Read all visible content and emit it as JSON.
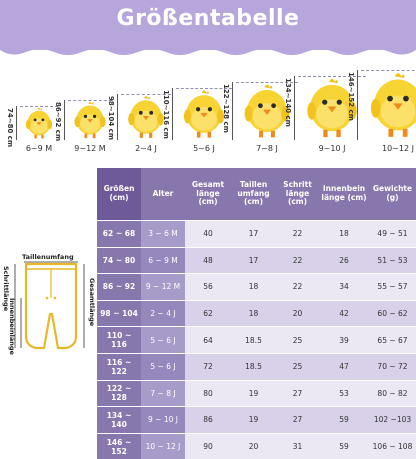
{
  "title": "Größentabelle",
  "colors": {
    "banner": "#b7a6dc",
    "header": "#8877ad",
    "chick": "#f7d334",
    "rowLight": "#ebe7f3",
    "rowDark": "#d8d1e9"
  },
  "chicks": [
    {
      "height": "74~80 cm",
      "age": "6~9 M"
    },
    {
      "height": "86~92 cm",
      "age": "9~12 M"
    },
    {
      "height": "98~104 cm",
      "age": "2~4 J"
    },
    {
      "height": "110~116 cm",
      "age": "5~6 J"
    },
    {
      "height": "122~128 cm",
      "age": "7~8 J"
    },
    {
      "height": "134~140 cm",
      "age": "9~10 J"
    },
    {
      "height": "146~152 cm",
      "age": "10~12 J"
    }
  ],
  "diagram": {
    "waist": "Taillenumfang",
    "side_left": "Schrittlänge",
    "side_mid": "Innenbeinlänge",
    "side_right": "Gesamtlänge"
  },
  "table": {
    "headers": [
      "Größen (cm)",
      "Alter",
      "Gesamt länge (cm)",
      "Taillen umfang (cm)",
      "Schritt länge (cm)",
      "Innenbein länge (cm)",
      "Gewichte (g)"
    ],
    "rows": [
      [
        "62 ~ 68",
        "3 ~ 6 M",
        "40",
        "17",
        "22",
        "18",
        "49 ~ 51"
      ],
      [
        "74 ~ 80",
        "6 ~ 9 M",
        "48",
        "17",
        "22",
        "26",
        "51 ~ 53"
      ],
      [
        "86 ~ 92",
        "9 ~ 12 M",
        "56",
        "18",
        "22",
        "34",
        "55 ~ 57"
      ],
      [
        "98 ~ 104",
        "2 ~ 4 J",
        "62",
        "18",
        "20",
        "42",
        "60 ~ 62"
      ],
      [
        "110 ~ 116",
        "5 ~ 6 J",
        "64",
        "18.5",
        "25",
        "39",
        "65 ~ 67"
      ],
      [
        "116 ~ 122",
        "5 ~ 6 J",
        "72",
        "18.5",
        "25",
        "47",
        "70 ~ 72"
      ],
      [
        "122 ~ 128",
        "7 ~ 8 J",
        "80",
        "19",
        "27",
        "53",
        "80 ~ 82"
      ],
      [
        "134 ~ 140",
        "9 ~ 10 J",
        "86",
        "19",
        "27",
        "59",
        "102 ~103"
      ],
      [
        "146 ~ 152",
        "10 ~ 12 J",
        "90",
        "20",
        "31",
        "59",
        "106 ~ 108"
      ]
    ]
  }
}
